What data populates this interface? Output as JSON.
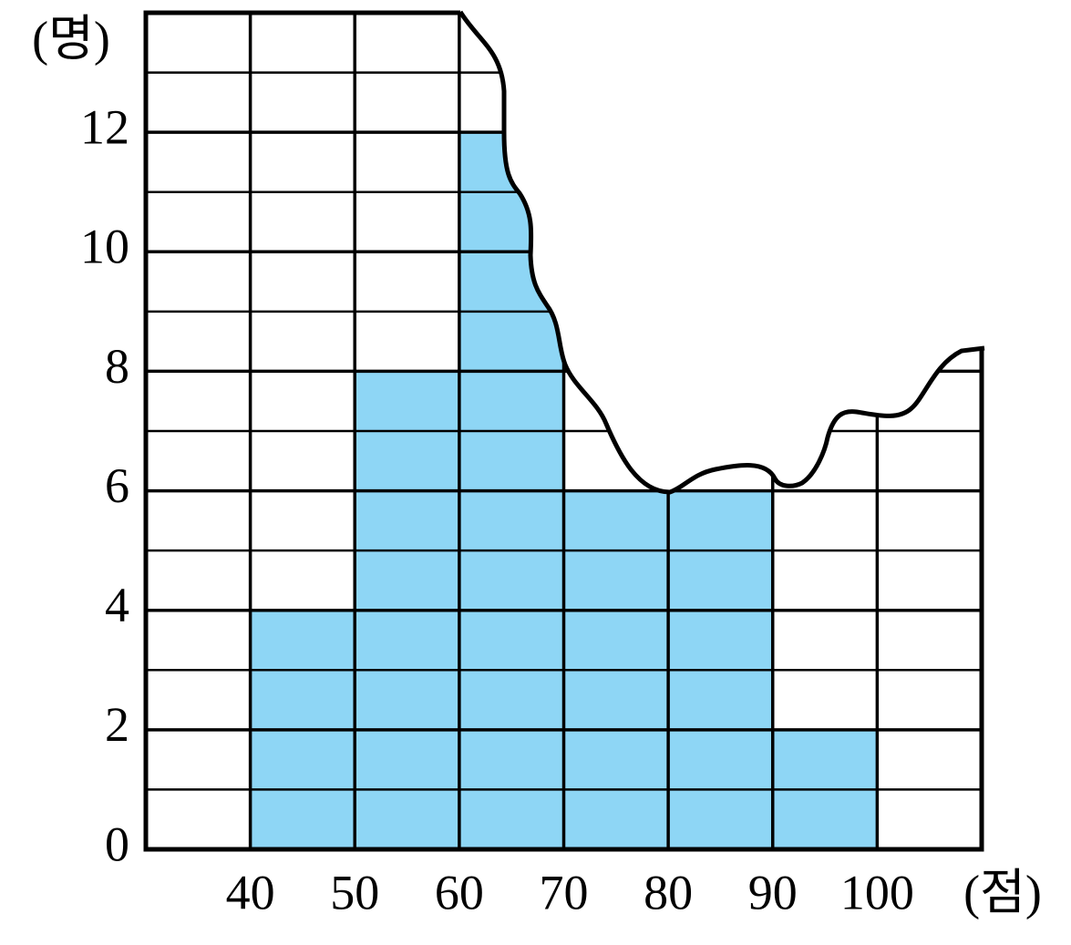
{
  "chart_data": {
    "type": "histogram",
    "y_label": "(명)",
    "x_label": "(점)",
    "bins": [
      40,
      50,
      60,
      70,
      80,
      90,
      100
    ],
    "values": [
      4,
      8,
      12,
      6,
      6,
      2
    ],
    "color": "#8ed6f5",
    "xlim": [
      30,
      110
    ],
    "ylim": [
      0,
      14
    ],
    "xticks": [
      40,
      50,
      60,
      70,
      80,
      90,
      100
    ],
    "yticks": [
      0,
      2,
      4,
      6,
      8,
      10,
      12
    ],
    "grid": true
  }
}
